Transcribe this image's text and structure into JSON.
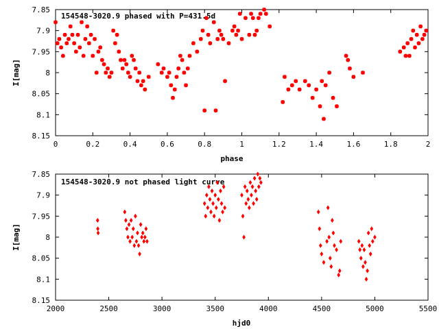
{
  "chart_data": [
    {
      "type": "scatter",
      "title": "154548-3020.9 phased with P=431.5d",
      "xlabel": "phase",
      "ylabel": "I[mag]",
      "xlim": [
        0,
        2
      ],
      "ylim": [
        8.15,
        7.85
      ],
      "y_reversed": true,
      "xticks": [
        "0",
        "0.2",
        "0.4",
        "0.6",
        "0.8",
        "1",
        "1.2",
        "1.4",
        "1.6",
        "1.8",
        "2"
      ],
      "xtick_values": [
        0,
        0.2,
        0.4,
        0.6,
        0.8,
        1.0,
        1.2,
        1.4,
        1.6,
        1.8,
        2.0
      ],
      "yticks": [
        "7.85",
        "7.9",
        "7.95",
        "8",
        "8.05",
        "8.1",
        "8.15"
      ],
      "ytick_values": [
        7.85,
        7.9,
        7.95,
        8.0,
        8.05,
        8.1,
        8.15
      ],
      "grid": false,
      "marker_color": "#ff0000",
      "points": [
        [
          0.0,
          7.88
        ],
        [
          0.01,
          7.93
        ],
        [
          0.02,
          7.92
        ],
        [
          0.03,
          7.94
        ],
        [
          0.04,
          7.96
        ],
        [
          0.05,
          7.91
        ],
        [
          0.06,
          7.93
        ],
        [
          0.07,
          7.92
        ],
        [
          0.08,
          7.89
        ],
        [
          0.09,
          7.91
        ],
        [
          0.1,
          7.93
        ],
        [
          0.11,
          7.95
        ],
        [
          0.12,
          7.91
        ],
        [
          0.13,
          7.94
        ],
        [
          0.14,
          7.88
        ],
        [
          0.15,
          7.96
        ],
        [
          0.16,
          7.92
        ],
        [
          0.17,
          7.89
        ],
        [
          0.18,
          7.93
        ],
        [
          0.19,
          7.91
        ],
        [
          0.2,
          7.96
        ],
        [
          0.21,
          7.92
        ],
        [
          0.22,
          8.0
        ],
        [
          0.23,
          7.95
        ],
        [
          0.24,
          7.94
        ],
        [
          0.25,
          7.97
        ],
        [
          0.26,
          7.98
        ],
        [
          0.27,
          8.0
        ],
        [
          0.28,
          7.99
        ],
        [
          0.29,
          8.01
        ],
        [
          0.3,
          8.0
        ],
        [
          0.31,
          7.9
        ],
        [
          0.32,
          7.93
        ],
        [
          0.33,
          7.91
        ],
        [
          0.34,
          7.95
        ],
        [
          0.35,
          7.97
        ],
        [
          0.36,
          7.99
        ],
        [
          0.37,
          7.97
        ],
        [
          0.38,
          7.98
        ],
        [
          0.39,
          8.0
        ],
        [
          0.4,
          8.01
        ],
        [
          0.41,
          7.96
        ],
        [
          0.42,
          7.97
        ],
        [
          0.43,
          7.99
        ],
        [
          0.44,
          8.02
        ],
        [
          0.45,
          8.0
        ],
        [
          0.46,
          8.03
        ],
        [
          0.47,
          8.02
        ],
        [
          0.48,
          8.04
        ],
        [
          0.5,
          8.01
        ],
        [
          0.55,
          7.98
        ],
        [
          0.57,
          8.0
        ],
        [
          0.58,
          7.99
        ],
        [
          0.6,
          8.01
        ],
        [
          0.61,
          8.0
        ],
        [
          0.62,
          8.03
        ],
        [
          0.63,
          8.06
        ],
        [
          0.64,
          8.04
        ],
        [
          0.65,
          8.01
        ],
        [
          0.66,
          7.99
        ],
        [
          0.67,
          7.96
        ],
        [
          0.68,
          7.97
        ],
        [
          0.69,
          8.0
        ],
        [
          0.7,
          8.03
        ],
        [
          0.71,
          7.99
        ],
        [
          0.72,
          7.96
        ],
        [
          0.74,
          7.93
        ],
        [
          0.76,
          7.95
        ],
        [
          0.78,
          7.92
        ],
        [
          0.79,
          7.9
        ],
        [
          0.8,
          8.09
        ],
        [
          0.81,
          7.87
        ],
        [
          0.82,
          7.91
        ],
        [
          0.83,
          7.93
        ],
        [
          0.85,
          7.88
        ],
        [
          0.86,
          8.09
        ],
        [
          0.87,
          7.92
        ],
        [
          0.88,
          7.9
        ],
        [
          0.89,
          7.91
        ],
        [
          0.9,
          7.92
        ],
        [
          0.91,
          8.02
        ],
        [
          0.93,
          7.93
        ],
        [
          0.95,
          7.9
        ],
        [
          0.96,
          7.89
        ],
        [
          0.97,
          7.91
        ],
        [
          0.98,
          7.9
        ],
        [
          0.99,
          7.86
        ],
        [
          1.0,
          7.92
        ],
        [
          1.02,
          7.87
        ],
        [
          1.04,
          7.91
        ],
        [
          1.05,
          7.86
        ],
        [
          1.06,
          7.87
        ],
        [
          1.07,
          7.91
        ],
        [
          1.08,
          7.9
        ],
        [
          1.09,
          7.87
        ],
        [
          1.1,
          7.86
        ],
        [
          1.12,
          7.85
        ],
        [
          1.13,
          7.86
        ],
        [
          1.15,
          7.89
        ],
        [
          1.22,
          8.07
        ],
        [
          1.23,
          8.01
        ],
        [
          1.25,
          8.04
        ],
        [
          1.27,
          8.03
        ],
        [
          1.29,
          8.02
        ],
        [
          1.31,
          8.04
        ],
        [
          1.34,
          8.02
        ],
        [
          1.36,
          8.03
        ],
        [
          1.38,
          8.06
        ],
        [
          1.4,
          8.04
        ],
        [
          1.42,
          8.08
        ],
        [
          1.43,
          8.02
        ],
        [
          1.44,
          8.11
        ],
        [
          1.45,
          8.03
        ],
        [
          1.47,
          8.0
        ],
        [
          1.49,
          8.06
        ],
        [
          1.51,
          8.08
        ],
        [
          1.56,
          7.96
        ],
        [
          1.57,
          7.97
        ],
        [
          1.58,
          7.99
        ],
        [
          1.6,
          8.01
        ],
        [
          1.65,
          8.0
        ],
        [
          1.85,
          7.95
        ],
        [
          1.87,
          7.94
        ],
        [
          1.88,
          7.96
        ],
        [
          1.89,
          7.93
        ],
        [
          1.9,
          7.96
        ],
        [
          1.91,
          7.92
        ],
        [
          1.92,
          7.9
        ],
        [
          1.93,
          7.94
        ],
        [
          1.94,
          7.91
        ],
        [
          1.95,
          7.93
        ],
        [
          1.96,
          7.89
        ],
        [
          1.97,
          7.92
        ],
        [
          1.98,
          7.91
        ],
        [
          1.99,
          7.9
        ]
      ]
    },
    {
      "type": "scatter",
      "title": "154548-3020.9 not phased light curve",
      "xlabel": "hjd0",
      "ylabel": "I[mag]",
      "xlim": [
        2000,
        5500
      ],
      "ylim": [
        8.15,
        7.85
      ],
      "y_reversed": true,
      "xticks": [
        "2000",
        "2500",
        "3000",
        "3500",
        "4000",
        "4500",
        "5000",
        "5500"
      ],
      "xtick_values": [
        2000,
        2500,
        3000,
        3500,
        4000,
        4500,
        5000,
        5500
      ],
      "yticks": [
        "7.85",
        "7.9",
        "7.95",
        "8",
        "8.05",
        "8.1",
        "8.15"
      ],
      "ytick_values": [
        7.85,
        7.9,
        7.95,
        8.0,
        8.05,
        8.1,
        8.15
      ],
      "grid": false,
      "marker_color": "#ff0000",
      "points": [
        [
          2395,
          7.96
        ],
        [
          2397,
          7.98
        ],
        [
          2400,
          7.99
        ],
        [
          2650,
          7.94
        ],
        [
          2660,
          7.96
        ],
        [
          2670,
          7.98
        ],
        [
          2680,
          8.0
        ],
        [
          2690,
          7.97
        ],
        [
          2700,
          8.01
        ],
        [
          2710,
          7.96
        ],
        [
          2720,
          8.0
        ],
        [
          2730,
          7.98
        ],
        [
          2740,
          8.02
        ],
        [
          2750,
          7.95
        ],
        [
          2760,
          8.01
        ],
        [
          2770,
          7.99
        ],
        [
          2780,
          8.02
        ],
        [
          2790,
          8.04
        ],
        [
          2800,
          7.97
        ],
        [
          2810,
          8.0
        ],
        [
          2820,
          7.99
        ],
        [
          2830,
          8.01
        ],
        [
          2840,
          8.0
        ],
        [
          2850,
          7.98
        ],
        [
          2860,
          8.01
        ],
        [
          3400,
          7.92
        ],
        [
          3410,
          7.95
        ],
        [
          3420,
          7.9
        ],
        [
          3430,
          7.93
        ],
        [
          3440,
          7.88
        ],
        [
          3450,
          7.91
        ],
        [
          3460,
          7.94
        ],
        [
          3470,
          7.89
        ],
        [
          3480,
          7.92
        ],
        [
          3490,
          7.95
        ],
        [
          3500,
          7.9
        ],
        [
          3510,
          7.93
        ],
        [
          3520,
          7.87
        ],
        [
          3530,
          7.91
        ],
        [
          3540,
          7.96
        ],
        [
          3550,
          7.89
        ],
        [
          3560,
          7.92
        ],
        [
          3570,
          7.94
        ],
        [
          3580,
          7.88
        ],
        [
          3590,
          7.93
        ],
        [
          3750,
          7.9
        ],
        [
          3760,
          7.95
        ],
        [
          3770,
          8.0
        ],
        [
          3780,
          7.88
        ],
        [
          3790,
          7.92
        ],
        [
          3800,
          7.89
        ],
        [
          3810,
          7.91
        ],
        [
          3820,
          7.93
        ],
        [
          3830,
          7.87
        ],
        [
          3840,
          7.9
        ],
        [
          3850,
          7.88
        ],
        [
          3860,
          7.92
        ],
        [
          3870,
          7.86
        ],
        [
          3880,
          7.89
        ],
        [
          3890,
          7.91
        ],
        [
          3900,
          7.85
        ],
        [
          3910,
          7.88
        ],
        [
          3920,
          7.86
        ],
        [
          3930,
          7.87
        ],
        [
          4470,
          7.94
        ],
        [
          4480,
          7.98
        ],
        [
          4490,
          8.02
        ],
        [
          4500,
          8.04
        ],
        [
          4520,
          8.06
        ],
        [
          4550,
          8.01
        ],
        [
          4560,
          7.93
        ],
        [
          4570,
          8.0
        ],
        [
          4580,
          8.05
        ],
        [
          4590,
          8.07
        ],
        [
          4600,
          7.96
        ],
        [
          4610,
          7.99
        ],
        [
          4620,
          8.02
        ],
        [
          4640,
          8.03
        ],
        [
          4660,
          8.09
        ],
        [
          4670,
          8.08
        ],
        [
          4680,
          8.01
        ],
        [
          4850,
          8.01
        ],
        [
          4860,
          8.03
        ],
        [
          4870,
          8.05
        ],
        [
          4880,
          8.02
        ],
        [
          4890,
          8.07
        ],
        [
          4900,
          8.03
        ],
        [
          4910,
          8.06
        ],
        [
          4920,
          8.1
        ],
        [
          4930,
          8.08
        ],
        [
          4940,
          7.99
        ],
        [
          4950,
          8.02
        ],
        [
          4960,
          8.04
        ],
        [
          4970,
          7.98
        ],
        [
          4980,
          8.01
        ],
        [
          5000,
          8.0
        ]
      ]
    }
  ]
}
